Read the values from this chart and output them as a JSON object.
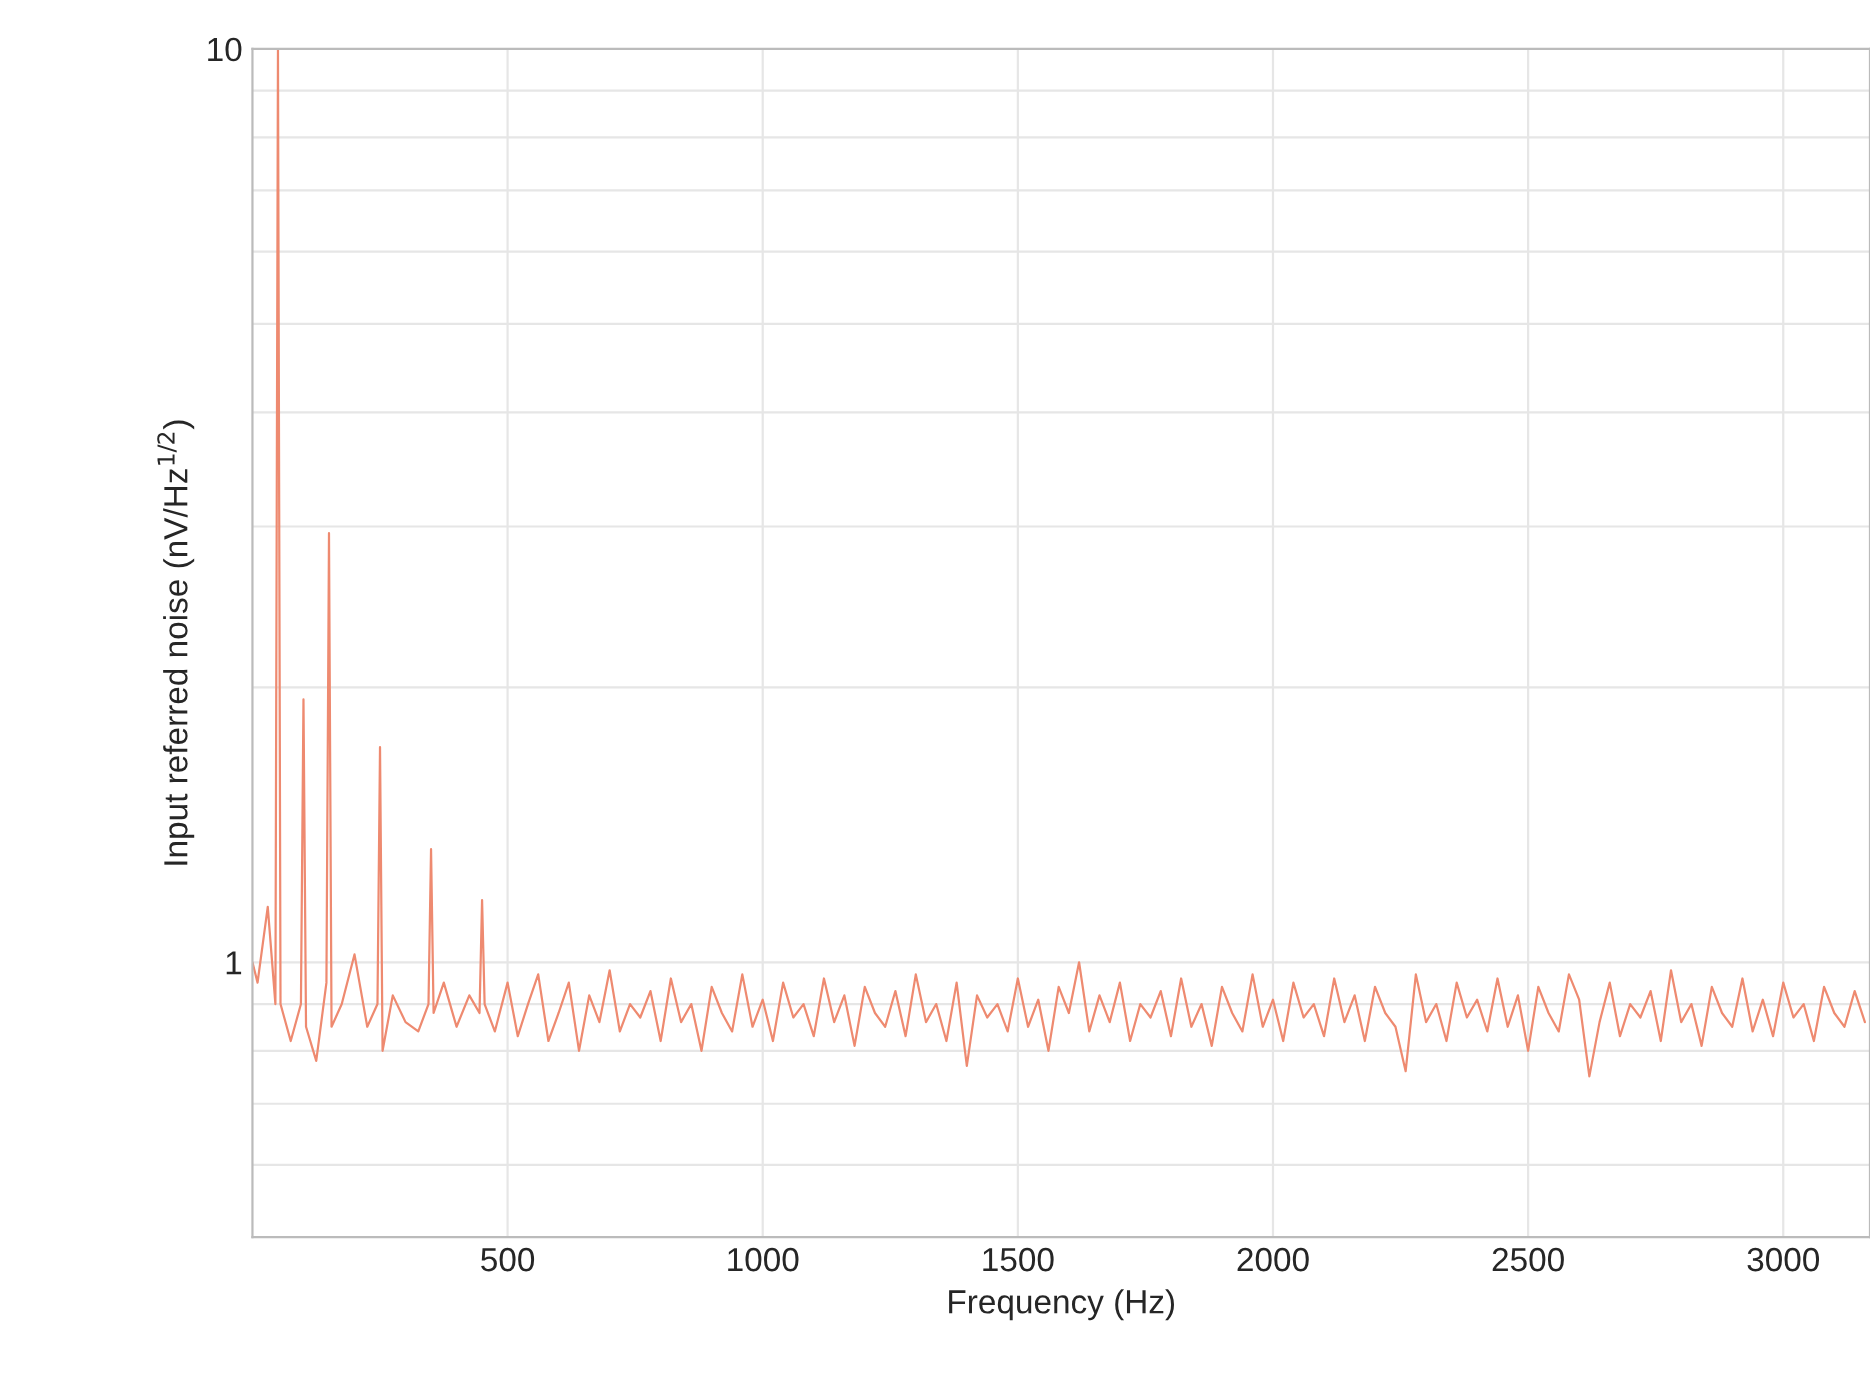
{
  "chart_data": {
    "type": "line",
    "xlabel": "Frequency (Hz)",
    "ylabel": "Input referred noise (nV/Hz$^{1/2}$)",
    "log": "y",
    "grid": true,
    "xlim": [
      0,
      3170
    ],
    "ylim": [
      0.5,
      10
    ],
    "xticks": [
      500,
      1000,
      1500,
      2000,
      2500,
      3000
    ],
    "yticks": [
      1,
      10
    ],
    "series": [
      {
        "color": "#ee8a70",
        "x": [
          0,
          10,
          30,
          45,
          50,
          55,
          75,
          95,
          100,
          105,
          125,
          145,
          150,
          155,
          175,
          200,
          225,
          245,
          250,
          255,
          275,
          300,
          325,
          345,
          350,
          355,
          375,
          400,
          425,
          445,
          450,
          455,
          475,
          500,
          520,
          540,
          560,
          580,
          600,
          620,
          640,
          660,
          680,
          700,
          720,
          740,
          760,
          780,
          800,
          820,
          840,
          860,
          880,
          900,
          920,
          940,
          960,
          980,
          1000,
          1020,
          1040,
          1060,
          1080,
          1100,
          1120,
          1140,
          1160,
          1180,
          1200,
          1220,
          1240,
          1260,
          1280,
          1300,
          1320,
          1340,
          1360,
          1380,
          1400,
          1420,
          1440,
          1460,
          1480,
          1500,
          1520,
          1540,
          1560,
          1580,
          1600,
          1620,
          1640,
          1660,
          1680,
          1700,
          1720,
          1740,
          1760,
          1780,
          1800,
          1820,
          1840,
          1860,
          1880,
          1900,
          1920,
          1940,
          1960,
          1980,
          2000,
          2020,
          2040,
          2060,
          2080,
          2100,
          2120,
          2140,
          2160,
          2180,
          2200,
          2220,
          2240,
          2260,
          2280,
          2300,
          2320,
          2340,
          2360,
          2380,
          2400,
          2420,
          2440,
          2460,
          2480,
          2500,
          2520,
          2540,
          2560,
          2580,
          2600,
          2620,
          2640,
          2660,
          2680,
          2700,
          2720,
          2740,
          2760,
          2780,
          2800,
          2820,
          2840,
          2860,
          2880,
          2900,
          2920,
          2940,
          2960,
          2980,
          3000,
          3020,
          3040,
          3060,
          3080,
          3100,
          3120,
          3140,
          3160
        ],
        "values": [
          1.0,
          0.95,
          1.15,
          0.9,
          10,
          0.9,
          0.82,
          0.9,
          1.94,
          0.85,
          0.78,
          0.95,
          2.95,
          0.85,
          0.9,
          1.02,
          0.85,
          0.9,
          1.72,
          0.8,
          0.92,
          0.86,
          0.84,
          0.9,
          1.33,
          0.88,
          0.95,
          0.85,
          0.92,
          0.88,
          1.17,
          0.9,
          0.84,
          0.95,
          0.83,
          0.9,
          0.97,
          0.82,
          0.88,
          0.95,
          0.8,
          0.92,
          0.86,
          0.98,
          0.84,
          0.9,
          0.87,
          0.93,
          0.82,
          0.96,
          0.86,
          0.9,
          0.8,
          0.94,
          0.88,
          0.84,
          0.97,
          0.85,
          0.91,
          0.82,
          0.95,
          0.87,
          0.9,
          0.83,
          0.96,
          0.86,
          0.92,
          0.81,
          0.94,
          0.88,
          0.85,
          0.93,
          0.83,
          0.97,
          0.86,
          0.9,
          0.82,
          0.95,
          0.77,
          0.92,
          0.87,
          0.9,
          0.84,
          0.96,
          0.85,
          0.91,
          0.8,
          0.94,
          0.88,
          1.0,
          0.84,
          0.92,
          0.86,
          0.95,
          0.82,
          0.9,
          0.87,
          0.93,
          0.83,
          0.96,
          0.85,
          0.9,
          0.81,
          0.94,
          0.88,
          0.84,
          0.97,
          0.85,
          0.91,
          0.82,
          0.95,
          0.87,
          0.9,
          0.83,
          0.96,
          0.86,
          0.92,
          0.82,
          0.94,
          0.88,
          0.85,
          0.76,
          0.97,
          0.86,
          0.9,
          0.82,
          0.95,
          0.87,
          0.91,
          0.84,
          0.96,
          0.85,
          0.92,
          0.8,
          0.94,
          0.88,
          0.84,
          0.97,
          0.91,
          0.75,
          0.86,
          0.95,
          0.83,
          0.9,
          0.87,
          0.93,
          0.82,
          0.98,
          0.86,
          0.9,
          0.81,
          0.94,
          0.88,
          0.85,
          0.96,
          0.84,
          0.91,
          0.83,
          0.95,
          0.87,
          0.9,
          0.82,
          0.94,
          0.88,
          0.85,
          0.93,
          0.86
        ]
      }
    ]
  }
}
